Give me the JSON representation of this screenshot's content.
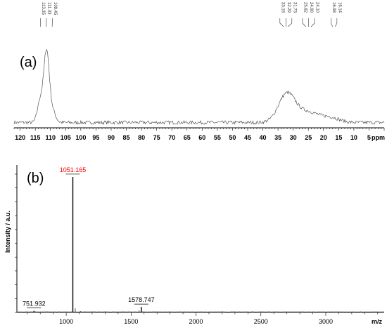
{
  "chart_data": [
    {
      "type": "line",
      "panel_label": "(a)",
      "xlabel": "ppm",
      "xlim": [
        122,
        0
      ],
      "x_reversed": true,
      "ylim": [
        0,
        1
      ],
      "tick_labels": [
        "120",
        "115",
        "110",
        "105",
        "100",
        "95",
        "90",
        "85",
        "80",
        "75",
        "70",
        "65",
        "60",
        "55",
        "50",
        "45",
        "40",
        "35",
        "30",
        "25",
        "20",
        "15",
        "10",
        "5"
      ],
      "peak_labels": [
        {
          "x": 113.35,
          "text": "113.35"
        },
        {
          "x": 111.33,
          "text": "111.33"
        },
        {
          "x": 109.45,
          "text": "109.45"
        },
        {
          "x": 33.18,
          "text": "33.18"
        },
        {
          "x": 32.29,
          "text": "32.29"
        },
        {
          "x": 31.73,
          "text": "31.73"
        },
        {
          "x": 25.82,
          "text": "25.82"
        },
        {
          "x": 24.9,
          "text": "24.90"
        },
        {
          "x": 24.1,
          "text": "24.10"
        },
        {
          "x": 16.98,
          "text": "16.98"
        },
        {
          "x": 16.14,
          "text": "16.14"
        }
      ],
      "peaks": [
        {
          "x": 111.3,
          "height": 0.92,
          "width": 0.9
        },
        {
          "x": 113.4,
          "height": 0.28,
          "width": 0.9
        },
        {
          "x": 109.3,
          "height": 0.14,
          "width": 1.0
        },
        {
          "x": 32.0,
          "height": 0.38,
          "width": 2.8
        },
        {
          "x": 25.0,
          "height": 0.13,
          "width": 3.0
        },
        {
          "x": 18.0,
          "height": 0.07,
          "width": 3.0
        }
      ],
      "baseline": 0.05,
      "grid": false
    },
    {
      "type": "line",
      "panel_label": "(b)",
      "xlabel": "m/z",
      "ylabel": "Intensity / a.u.",
      "xlim": [
        620,
        3450
      ],
      "ylim": [
        0,
        1
      ],
      "x_ticks": [
        1000,
        1500,
        2000,
        2500,
        3000
      ],
      "tick_labels": [
        "1000",
        "1500",
        "2000",
        "2500",
        "3000"
      ],
      "peaks": [
        {
          "x": 751.932,
          "label": "751.932",
          "height": 0.012,
          "label_color": "#000000"
        },
        {
          "x": 1051.165,
          "label": "1051.165",
          "height": 0.98,
          "label_color": "#ff0000"
        },
        {
          "x": 1578.747,
          "label": "1578.747",
          "height": 0.04,
          "label_color": "#000000"
        }
      ],
      "grid": false
    }
  ]
}
